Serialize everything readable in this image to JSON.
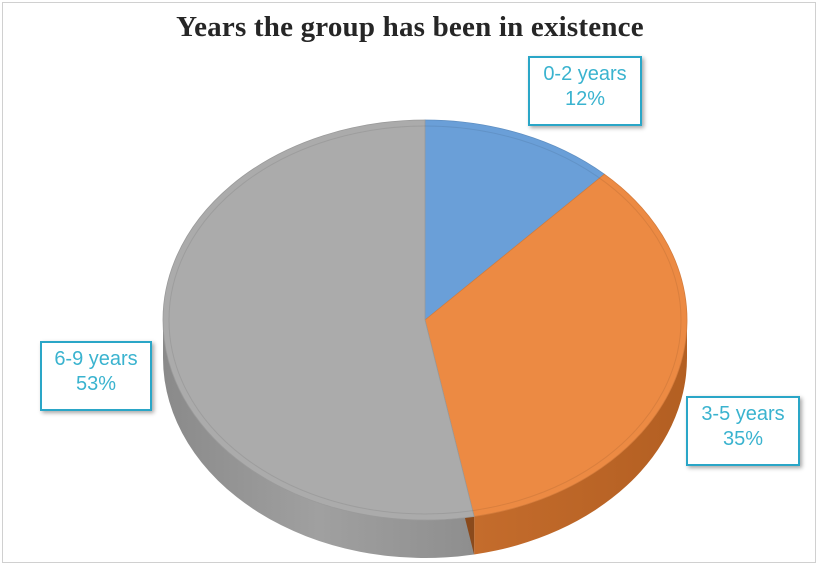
{
  "chart_data": {
    "type": "pie",
    "title": "Years the group has been in existence",
    "style": "3d",
    "slices": [
      {
        "label": "0-2 years",
        "value": 12,
        "value_label": "12%",
        "color": "#6a9fd8"
      },
      {
        "label": "3-5 years",
        "value": 35,
        "value_label": "35%",
        "color": "#ec8a43"
      },
      {
        "label": "6-9 years",
        "value": 53,
        "value_label": "53%",
        "color": "#ababab"
      }
    ],
    "label_color": "#3ab3cf",
    "label_border_color": "#2aa6c7"
  }
}
